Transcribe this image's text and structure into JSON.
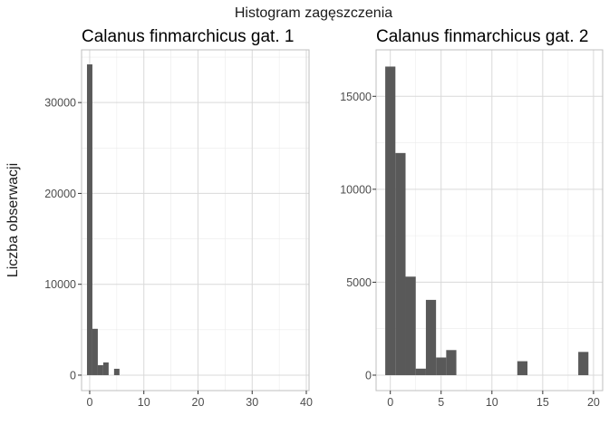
{
  "figure": {
    "title": "Histogram zagęszczenia",
    "ylabel": "Liczba obserwacji"
  },
  "colors": {
    "bar": "#595959",
    "grid_major": "#d9d9d9",
    "grid_minor": "#ebebeb",
    "panel_border": "#bfbfbf",
    "tick_text": "#4d4d4d"
  },
  "chart_data": [
    {
      "type": "bar",
      "title": "Calanus finmarchicus gat. 1",
      "xlabel": "",
      "ylabel": "Liczba obserwacji",
      "grid": true,
      "xlim": [
        -1.5,
        40.5
      ],
      "ylim": [
        -1700,
        35800
      ],
      "xticks": [
        0,
        10,
        20,
        30,
        40
      ],
      "yticks": [
        0,
        10000,
        20000,
        30000
      ],
      "bin_width": 1,
      "x": [
        0,
        1,
        2,
        3,
        4,
        5
      ],
      "values": [
        34200,
        5100,
        1100,
        1400,
        0,
        700
      ]
    },
    {
      "type": "bar",
      "title": "Calanus finmarchicus gat. 2",
      "xlabel": "",
      "ylabel": "Liczba obserwacji",
      "grid": true,
      "xlim": [
        -1.4,
        20.9
      ],
      "ylim": [
        -830,
        17500
      ],
      "xticks": [
        0,
        5,
        10,
        15,
        20
      ],
      "yticks": [
        0,
        5000,
        10000,
        15000
      ],
      "bin_width": 1,
      "x": [
        0,
        1,
        2,
        3,
        4,
        5,
        6,
        7,
        8,
        9,
        10,
        11,
        12,
        13,
        14,
        15,
        16,
        17,
        18,
        19
      ],
      "values": [
        16600,
        11950,
        5300,
        350,
        4050,
        950,
        1350,
        0,
        0,
        0,
        0,
        0,
        0,
        750,
        0,
        0,
        0,
        0,
        0,
        1250
      ]
    }
  ]
}
